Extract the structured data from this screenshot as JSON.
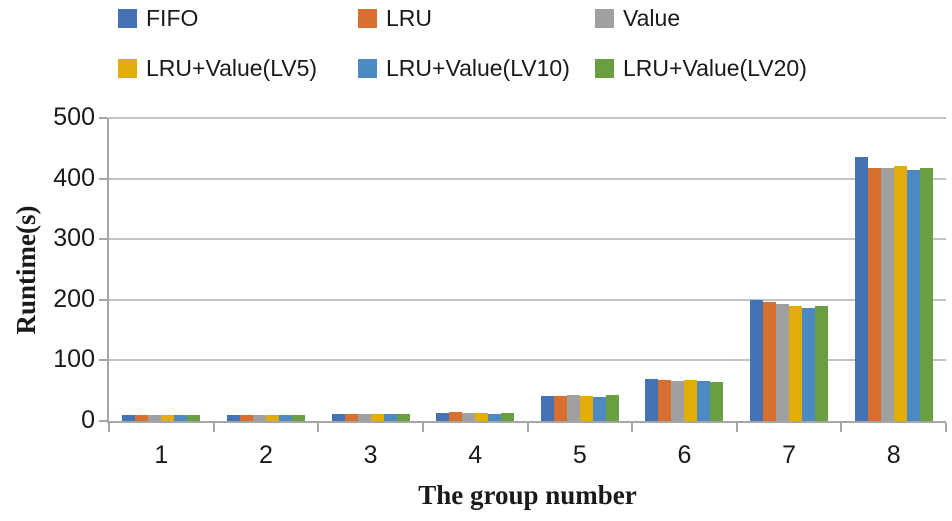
{
  "figure": {
    "background": "#FFFFFF",
    "text_color": "#1A1A1A",
    "gridline_color": "#C3C3C3",
    "axis_line_color": "#A6A6A6"
  },
  "legend": {
    "position": "top",
    "items": [
      {
        "label": "FIFO",
        "color": "#4472B5"
      },
      {
        "label": "LRU",
        "color": "#D96F2E"
      },
      {
        "label": "Value",
        "color": "#A0A0A0"
      },
      {
        "label": "LRU+Value(LV5)",
        "color": "#E4AC08"
      },
      {
        "label": "LRU+Value(LV10)",
        "color": "#4D8AC1"
      },
      {
        "label": "LRU+Value(LV20)",
        "color": "#6A9E43"
      }
    ]
  },
  "chart_data": {
    "type": "bar",
    "title": "",
    "xlabel": "The group number",
    "ylabel": "Runtime(s)",
    "categories": [
      "1",
      "2",
      "3",
      "4",
      "5",
      "6",
      "7",
      "8"
    ],
    "series": [
      {
        "name": "FIFO",
        "color": "#4472B5",
        "values": [
          10,
          10,
          12,
          13,
          41,
          70,
          200,
          435
        ]
      },
      {
        "name": "LRU",
        "color": "#D96F2E",
        "values": [
          10,
          10,
          12,
          15,
          42,
          68,
          196,
          417
        ]
      },
      {
        "name": "Value",
        "color": "#A0A0A0",
        "values": [
          10,
          10,
          12,
          14,
          43,
          66,
          193,
          418
        ]
      },
      {
        "name": "LRU+Value(LV5)",
        "color": "#E4AC08",
        "values": [
          10,
          10,
          12,
          13,
          42,
          67,
          190,
          420
        ]
      },
      {
        "name": "LRU+Value(LV10)",
        "color": "#4D8AC1",
        "values": [
          10,
          10,
          12,
          12,
          40,
          66,
          186,
          415
        ]
      },
      {
        "name": "LRU+Value(LV20)",
        "color": "#6A9E43",
        "values": [
          10,
          10,
          12,
          13,
          43,
          65,
          189,
          417
        ]
      }
    ],
    "ylim": [
      0,
      500
    ],
    "ytick_step": 100,
    "y_tick_labels": [
      "0",
      "100",
      "200",
      "300",
      "400",
      "500"
    ],
    "grid": true,
    "legend_position": "top"
  }
}
